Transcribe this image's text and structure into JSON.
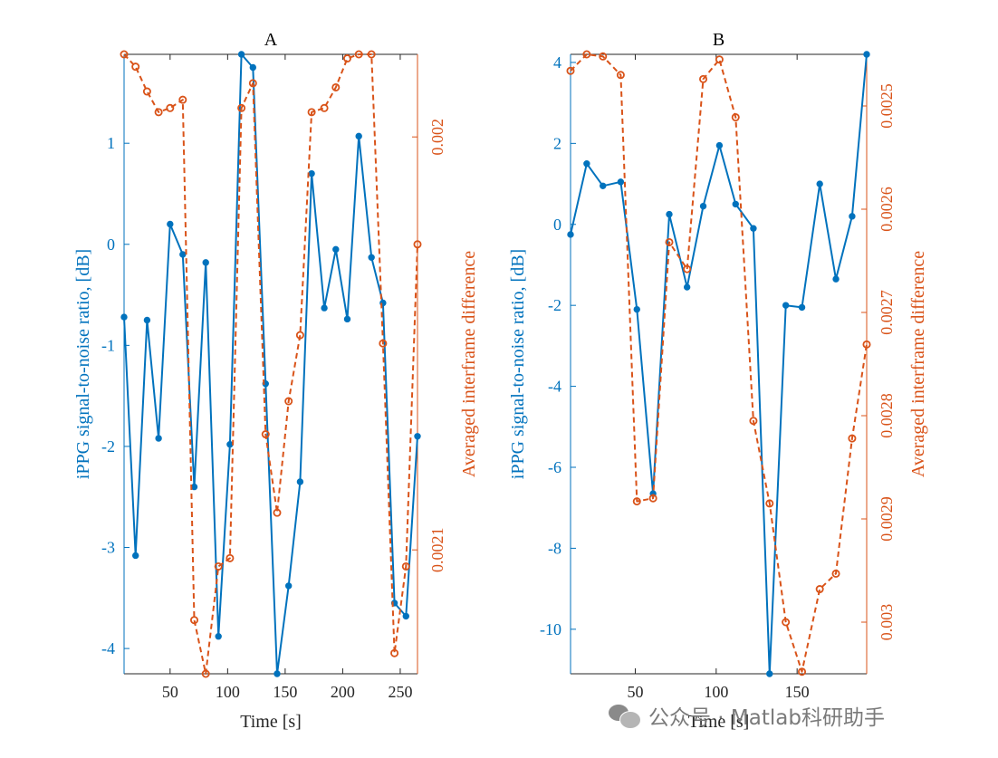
{
  "colors": {
    "left_series": "#0072BD",
    "right_series": "#D95319",
    "axes": "#262626"
  },
  "watermark": {
    "text": "公众号 · Matlab科研助手",
    "icon": "wechat-icon"
  },
  "chart_data": [
    {
      "type": "line",
      "title": "A",
      "xlabel": "Time [s]",
      "ylabel_left": "iPPG signal-to-noise ratio, [dB]",
      "ylabel_right": "Averaged interframe difference",
      "xlim": [
        10,
        265
      ],
      "xticks": [
        50,
        100,
        150,
        200,
        250
      ],
      "ylim_left": [
        -4.25,
        1.88
      ],
      "yticks_left": [
        -4,
        -3,
        -2,
        -1,
        0,
        1
      ],
      "ylim_right": [
        0.00198,
        0.00213
      ],
      "right_axis_reversed": true,
      "yticks_right": [
        0.002,
        0.0021
      ],
      "yticklabels_right": [
        "0.002",
        "0.0021"
      ],
      "grid": false,
      "series": [
        {
          "axis": "left",
          "style": "solid-dot",
          "x": [
            10,
            20,
            30,
            40,
            50,
            61,
            71,
            81,
            92,
            102,
            112,
            122,
            133,
            143,
            153,
            163,
            173,
            184,
            194,
            204,
            214,
            225,
            235,
            245,
            255,
            265
          ],
          "y": [
            -0.72,
            -3.08,
            -0.75,
            -1.92,
            0.2,
            -0.1,
            -2.4,
            -0.18,
            -3.88,
            -1.98,
            1.88,
            1.75,
            -1.38,
            -4.25,
            -3.38,
            -2.35,
            0.7,
            -0.63,
            -0.05,
            -0.74,
            1.07,
            -0.13,
            -0.58,
            -3.55,
            -3.68,
            -1.9
          ]
        },
        {
          "axis": "right",
          "style": "dashed-circle",
          "x": [
            10,
            20,
            30,
            40,
            50,
            61,
            71,
            81,
            92,
            102,
            112,
            122,
            133,
            143,
            153,
            163,
            173,
            184,
            194,
            204,
            214,
            225,
            235,
            245,
            255,
            265
          ],
          "y": [
            0.00198,
            0.001983,
            0.001989,
            0.001994,
            0.001993,
            0.001991,
            0.002117,
            0.00213,
            0.002104,
            0.002102,
            0.001993,
            0.001987,
            0.002072,
            0.002091,
            0.002064,
            0.002048,
            0.001994,
            0.001993,
            0.001988,
            0.001981,
            0.00198,
            0.00198,
            0.00205,
            0.002125,
            0.002104,
            0.002026
          ]
        }
      ]
    },
    {
      "type": "line",
      "title": "B",
      "xlabel": "Time [s]",
      "ylabel_left": "iPPG signal-to-noise ratio, [dB]",
      "ylabel_right": "Averaged interframe difference",
      "xlim": [
        10,
        193
      ],
      "xticks": [
        50,
        100,
        150
      ],
      "ylim_left": [
        -11.1,
        4.2
      ],
      "yticks_left": [
        -10,
        -8,
        -6,
        -4,
        -2,
        0,
        2,
        4
      ],
      "ylim_right": [
        0.00245,
        0.00305
      ],
      "right_axis_reversed": true,
      "yticks_right": [
        0.0025,
        0.0026,
        0.0027,
        0.0028,
        0.0029,
        0.003
      ],
      "yticklabels_right": [
        "0.0025",
        "0.0026",
        "0.0027",
        "0.0028",
        "0.0029",
        "0.003"
      ],
      "grid": false,
      "series": [
        {
          "axis": "left",
          "style": "solid-dot",
          "x": [
            10,
            20,
            30,
            41,
            51,
            61,
            71,
            82,
            92,
            102,
            112,
            123,
            133,
            143,
            153,
            164,
            174,
            184,
            193
          ],
          "y": [
            -0.25,
            1.5,
            0.95,
            1.05,
            -2.1,
            -6.65,
            0.25,
            -1.55,
            0.45,
            1.95,
            0.5,
            -0.1,
            -11.1,
            -2.0,
            -2.05,
            1.0,
            -1.35,
            0.2,
            4.2
          ]
        },
        {
          "axis": "right",
          "style": "dashed-circle",
          "x": [
            10,
            20,
            30,
            41,
            51,
            61,
            71,
            82,
            92,
            102,
            112,
            123,
            133,
            143,
            153,
            164,
            174,
            184,
            193
          ],
          "y": [
            0.002466,
            0.00245,
            0.002452,
            0.00247,
            0.002883,
            0.00288,
            0.002632,
            0.002658,
            0.002474,
            0.002455,
            0.002511,
            0.002805,
            0.002885,
            0.003,
            0.003048,
            0.002968,
            0.002953,
            0.002822,
            0.002731
          ]
        }
      ]
    }
  ]
}
